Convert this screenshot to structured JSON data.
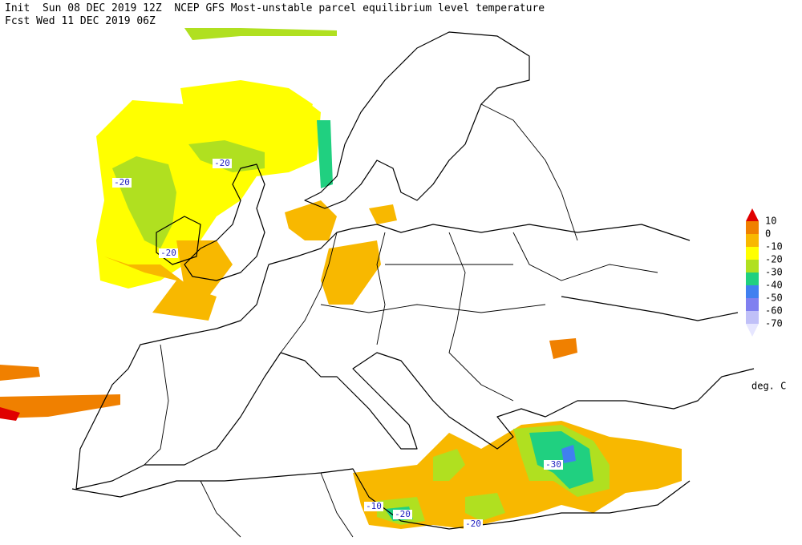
{
  "header": {
    "line1": "Init  Sun 08 DEC 2019 12Z  NCEP GFS Most-unstable parcel equilibrium level temperature",
    "line2": "Fcst Wed 11 DEC 2019 06Z"
  },
  "legend": {
    "labels": [
      "10",
      "0",
      "-10",
      "-20",
      "-30",
      "-40",
      "-50",
      "-60",
      "-70"
    ],
    "colors": [
      "#e00000",
      "#f08000",
      "#f8b800",
      "#ffff00",
      "#b0e020",
      "#20d080",
      "#4080f0",
      "#8080f0",
      "#c0c0f8",
      "#e6e6ff"
    ],
    "unit": "deg. C"
  },
  "contour_labels": [
    "-20",
    "-20",
    "-20",
    "-30",
    "-10",
    "-20",
    "-20"
  ]
}
